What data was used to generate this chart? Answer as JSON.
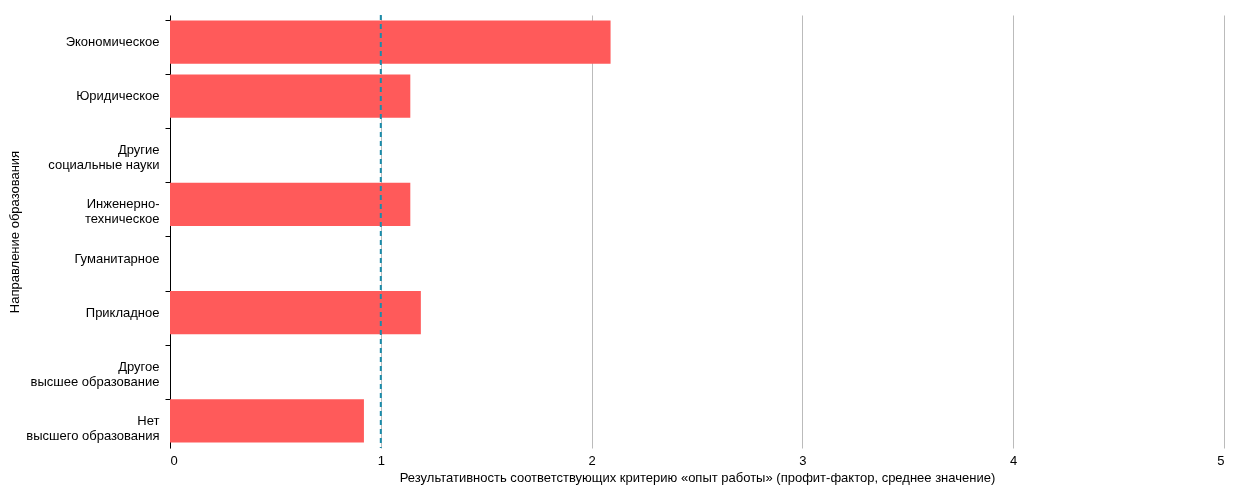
{
  "chart_data": {
    "type": "bar",
    "orientation": "horizontal",
    "categories": [
      "Экономическое",
      "Юридическое",
      "Другие\nсоциальные науки",
      "Инженерно-\nтехническое",
      "Гуманитарное",
      "Прикладное",
      "Другое\nвысшее образование",
      "Нет\nвысшего образования"
    ],
    "values": [
      2.09,
      1.14,
      null,
      1.14,
      null,
      1.19,
      null,
      0.92
    ],
    "color": "#ff5a5a",
    "xlabel": "Результативность соответствующих критерию «опыт работы» (профит-фактор, среднее значение)",
    "ylabel": "Направление образования",
    "xlim": [
      0,
      5
    ],
    "xticks": [
      0,
      1,
      2,
      3,
      4,
      5
    ],
    "grid": "x",
    "ref_lines": [
      {
        "axis": "x",
        "value": 1,
        "color": "#1a8caa",
        "line_style": "dashed"
      }
    ]
  }
}
